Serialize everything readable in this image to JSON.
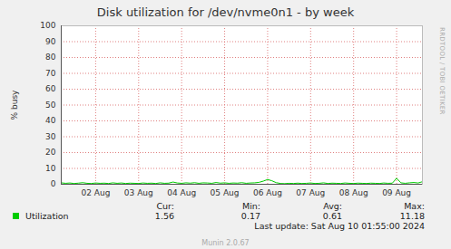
{
  "chart_data": {
    "type": "line",
    "title": "Disk utilization for /dev/nvme0n1 - by week",
    "y_label": "% busy",
    "categories": [
      null,
      null,
      null,
      null,
      null,
      null,
      null,
      null,
      "02 Aug",
      null,
      null,
      null,
      null,
      null,
      null,
      null,
      null,
      null,
      "03 Aug",
      null,
      null,
      null,
      null,
      null,
      null,
      null,
      null,
      null,
      "04 Aug",
      null,
      null,
      null,
      null,
      null,
      null,
      null,
      null,
      null,
      "05 Aug",
      null,
      null,
      null,
      null,
      null,
      null,
      null,
      null,
      null,
      "06 Aug",
      null,
      null,
      null,
      null,
      null,
      null,
      null,
      null,
      null,
      "07 Aug",
      null,
      null,
      null,
      null,
      null,
      null,
      null,
      null,
      null,
      "08 Aug",
      null,
      null,
      null,
      null,
      null,
      null,
      null,
      null,
      null,
      "09 Aug",
      null,
      null,
      null,
      null,
      null,
      null
    ],
    "series": [
      {
        "name": "Utilization",
        "color": "#00cc00",
        "values": [
          0.9,
          0.6,
          0.8,
          0.5,
          0.7,
          1.0,
          0.6,
          0.5,
          0.8,
          0.6,
          0.7,
          0.5,
          0.9,
          0.6,
          0.8,
          0.5,
          0.7,
          0.6,
          0.5,
          0.8,
          0.6,
          0.7,
          0.5,
          0.9,
          0.6,
          0.7,
          1.4,
          0.8,
          0.6,
          0.9,
          0.7,
          1.0,
          0.6,
          0.9,
          0.8,
          0.6,
          1.1,
          0.7,
          0.9,
          0.6,
          0.8,
          0.7,
          1.0,
          0.6,
          0.8,
          0.9,
          1.2,
          2.0,
          3.0,
          2.2,
          1.0,
          0.5,
          0.4,
          0.6,
          0.5,
          0.7,
          0.5,
          0.6,
          0.8,
          0.5,
          0.6,
          0.9,
          0.5,
          0.7,
          0.6,
          0.5,
          0.8,
          0.6,
          0.5,
          0.7,
          0.6,
          0.5,
          0.7,
          0.6,
          0.5,
          0.8,
          0.6,
          0.7,
          3.8,
          0.9,
          0.6,
          0.9,
          1.1,
          0.8,
          1.6
        ]
      }
    ],
    "ylim": [
      0,
      100
    ],
    "yticks": [
      0,
      10,
      20,
      30,
      40,
      50,
      60,
      70,
      80,
      90,
      100
    ],
    "grid": true,
    "legend": "bottom",
    "legend_stats": {
      "labels": [
        "Cur:",
        "Min:",
        "Avg:",
        "Max:"
      ],
      "values": [
        1.56,
        0.17,
        0.61,
        11.18
      ]
    },
    "last_update": "Last update: Sat Aug 10 01:55:00 2024",
    "watermark": "RRDTOOL / TOBI OETIKER",
    "footer": "Munin 2.0.67"
  }
}
